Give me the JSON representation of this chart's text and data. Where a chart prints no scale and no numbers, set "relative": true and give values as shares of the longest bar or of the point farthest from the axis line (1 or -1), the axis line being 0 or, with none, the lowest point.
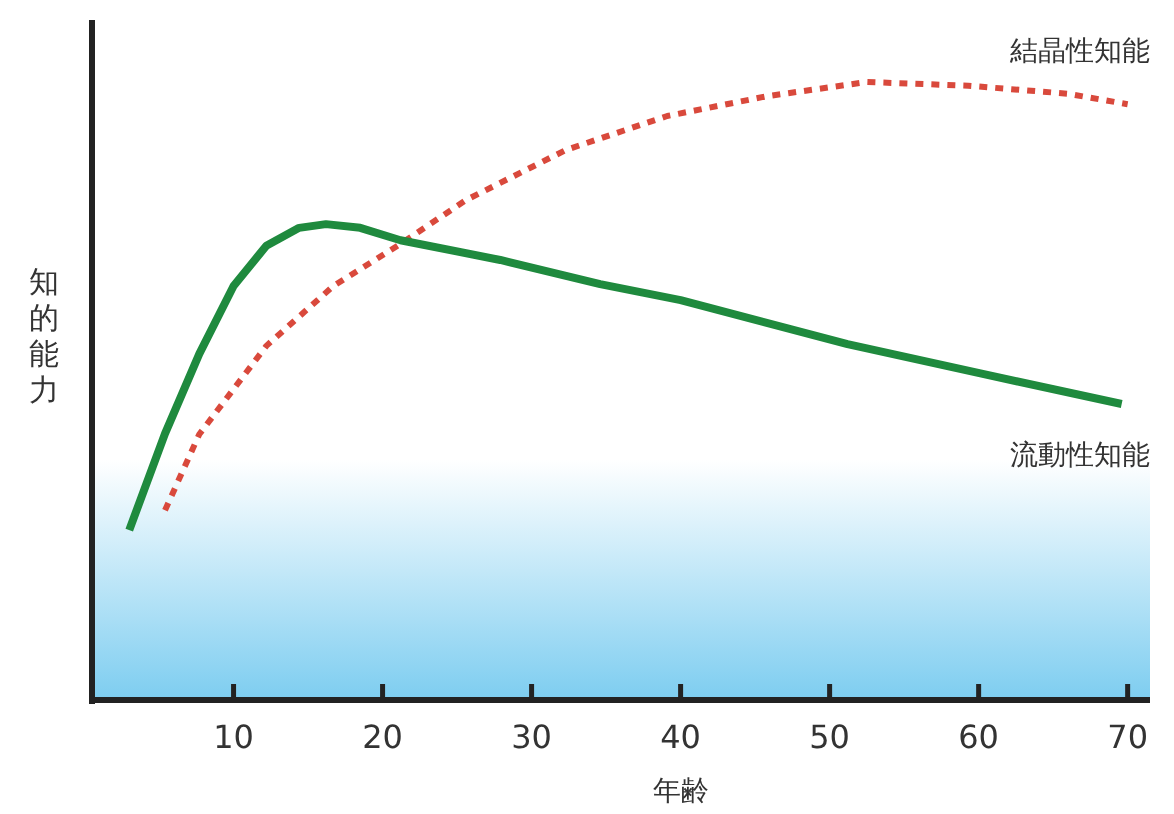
{
  "chart_data": {
    "type": "line",
    "xlabel": "年齢",
    "ylabel": "知的能力",
    "relative": true,
    "xlim": [
      0.5,
      71.5
    ],
    "xticks": [
      10,
      20,
      30,
      40,
      50,
      60,
      70
    ],
    "grid": false,
    "series": [
      {
        "name": "結晶性知能",
        "color": "#d9493c",
        "line_style": "dotted",
        "x": [
          5.4,
          7.7,
          12.2,
          16.7,
          21.2,
          25.6,
          32.3,
          39.1,
          45.8,
          52.5,
          59.3,
          66,
          70
        ],
        "values": [
          0.307,
          0.43,
          0.573,
          0.67,
          0.738,
          0.809,
          0.89,
          0.945,
          0.977,
          1,
          0.994,
          0.981,
          0.964
        ]
      },
      {
        "name": "流動性知能",
        "color": "#1f8a3e",
        "line_style": "solid",
        "x": [
          3.0,
          5.4,
          7.7,
          10,
          12.2,
          14.4,
          16.2,
          18.5,
          21.2,
          27.9,
          34.6,
          40,
          51.2,
          60.2,
          69.6
        ],
        "values": [
          0.275,
          0.431,
          0.56,
          0.67,
          0.735,
          0.764,
          0.77,
          0.764,
          0.744,
          0.712,
          0.673,
          0.647,
          0.576,
          0.528,
          0.479
        ]
      }
    ]
  }
}
